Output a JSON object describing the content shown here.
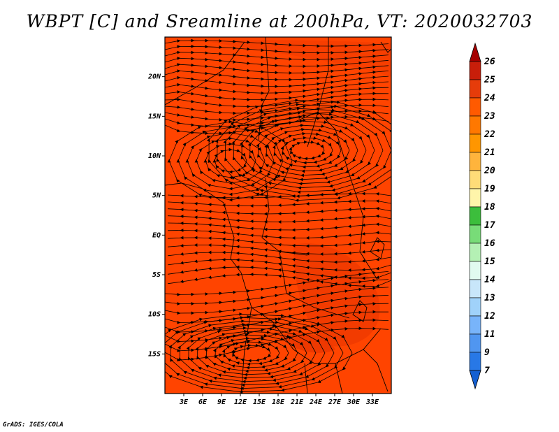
{
  "title": "WBPT [C] and Sreamline at 200hPa, VT: 2020032703",
  "footer": "GrADS: IGES/COLA",
  "map": {
    "lon_range": [
      0,
      36
    ],
    "lat_range": [
      -20,
      25
    ],
    "lon_ticks": [
      "3E",
      "6E",
      "9E",
      "12E",
      "15E",
      "18E",
      "21E",
      "24E",
      "27E",
      "30E",
      "33E"
    ],
    "lat_ticks": [
      "20N",
      "15N",
      "10N",
      "5N",
      "EQ",
      "5S",
      "10S",
      "15S"
    ],
    "field_color": "#ff4400",
    "field_dark_color": "#f03c00"
  },
  "colorbar": {
    "labels": [
      "26",
      "25",
      "24",
      "23",
      "22",
      "21",
      "20",
      "19",
      "18",
      "17",
      "16",
      "15",
      "14",
      "13",
      "12",
      "11",
      "9",
      "7"
    ],
    "colors": [
      "#a50000",
      "#c81e0a",
      "#e63c0a",
      "#ff5a00",
      "#ff7800",
      "#ff9600",
      "#ffb43c",
      "#ffdc78",
      "#fff5aa",
      "#3cbe3c",
      "#78dc78",
      "#b4f0b4",
      "#e1faf0",
      "#c8e6fa",
      "#a0d2fa",
      "#78b4fa",
      "#5096f0",
      "#2878e6",
      "#1460d2"
    ]
  }
}
